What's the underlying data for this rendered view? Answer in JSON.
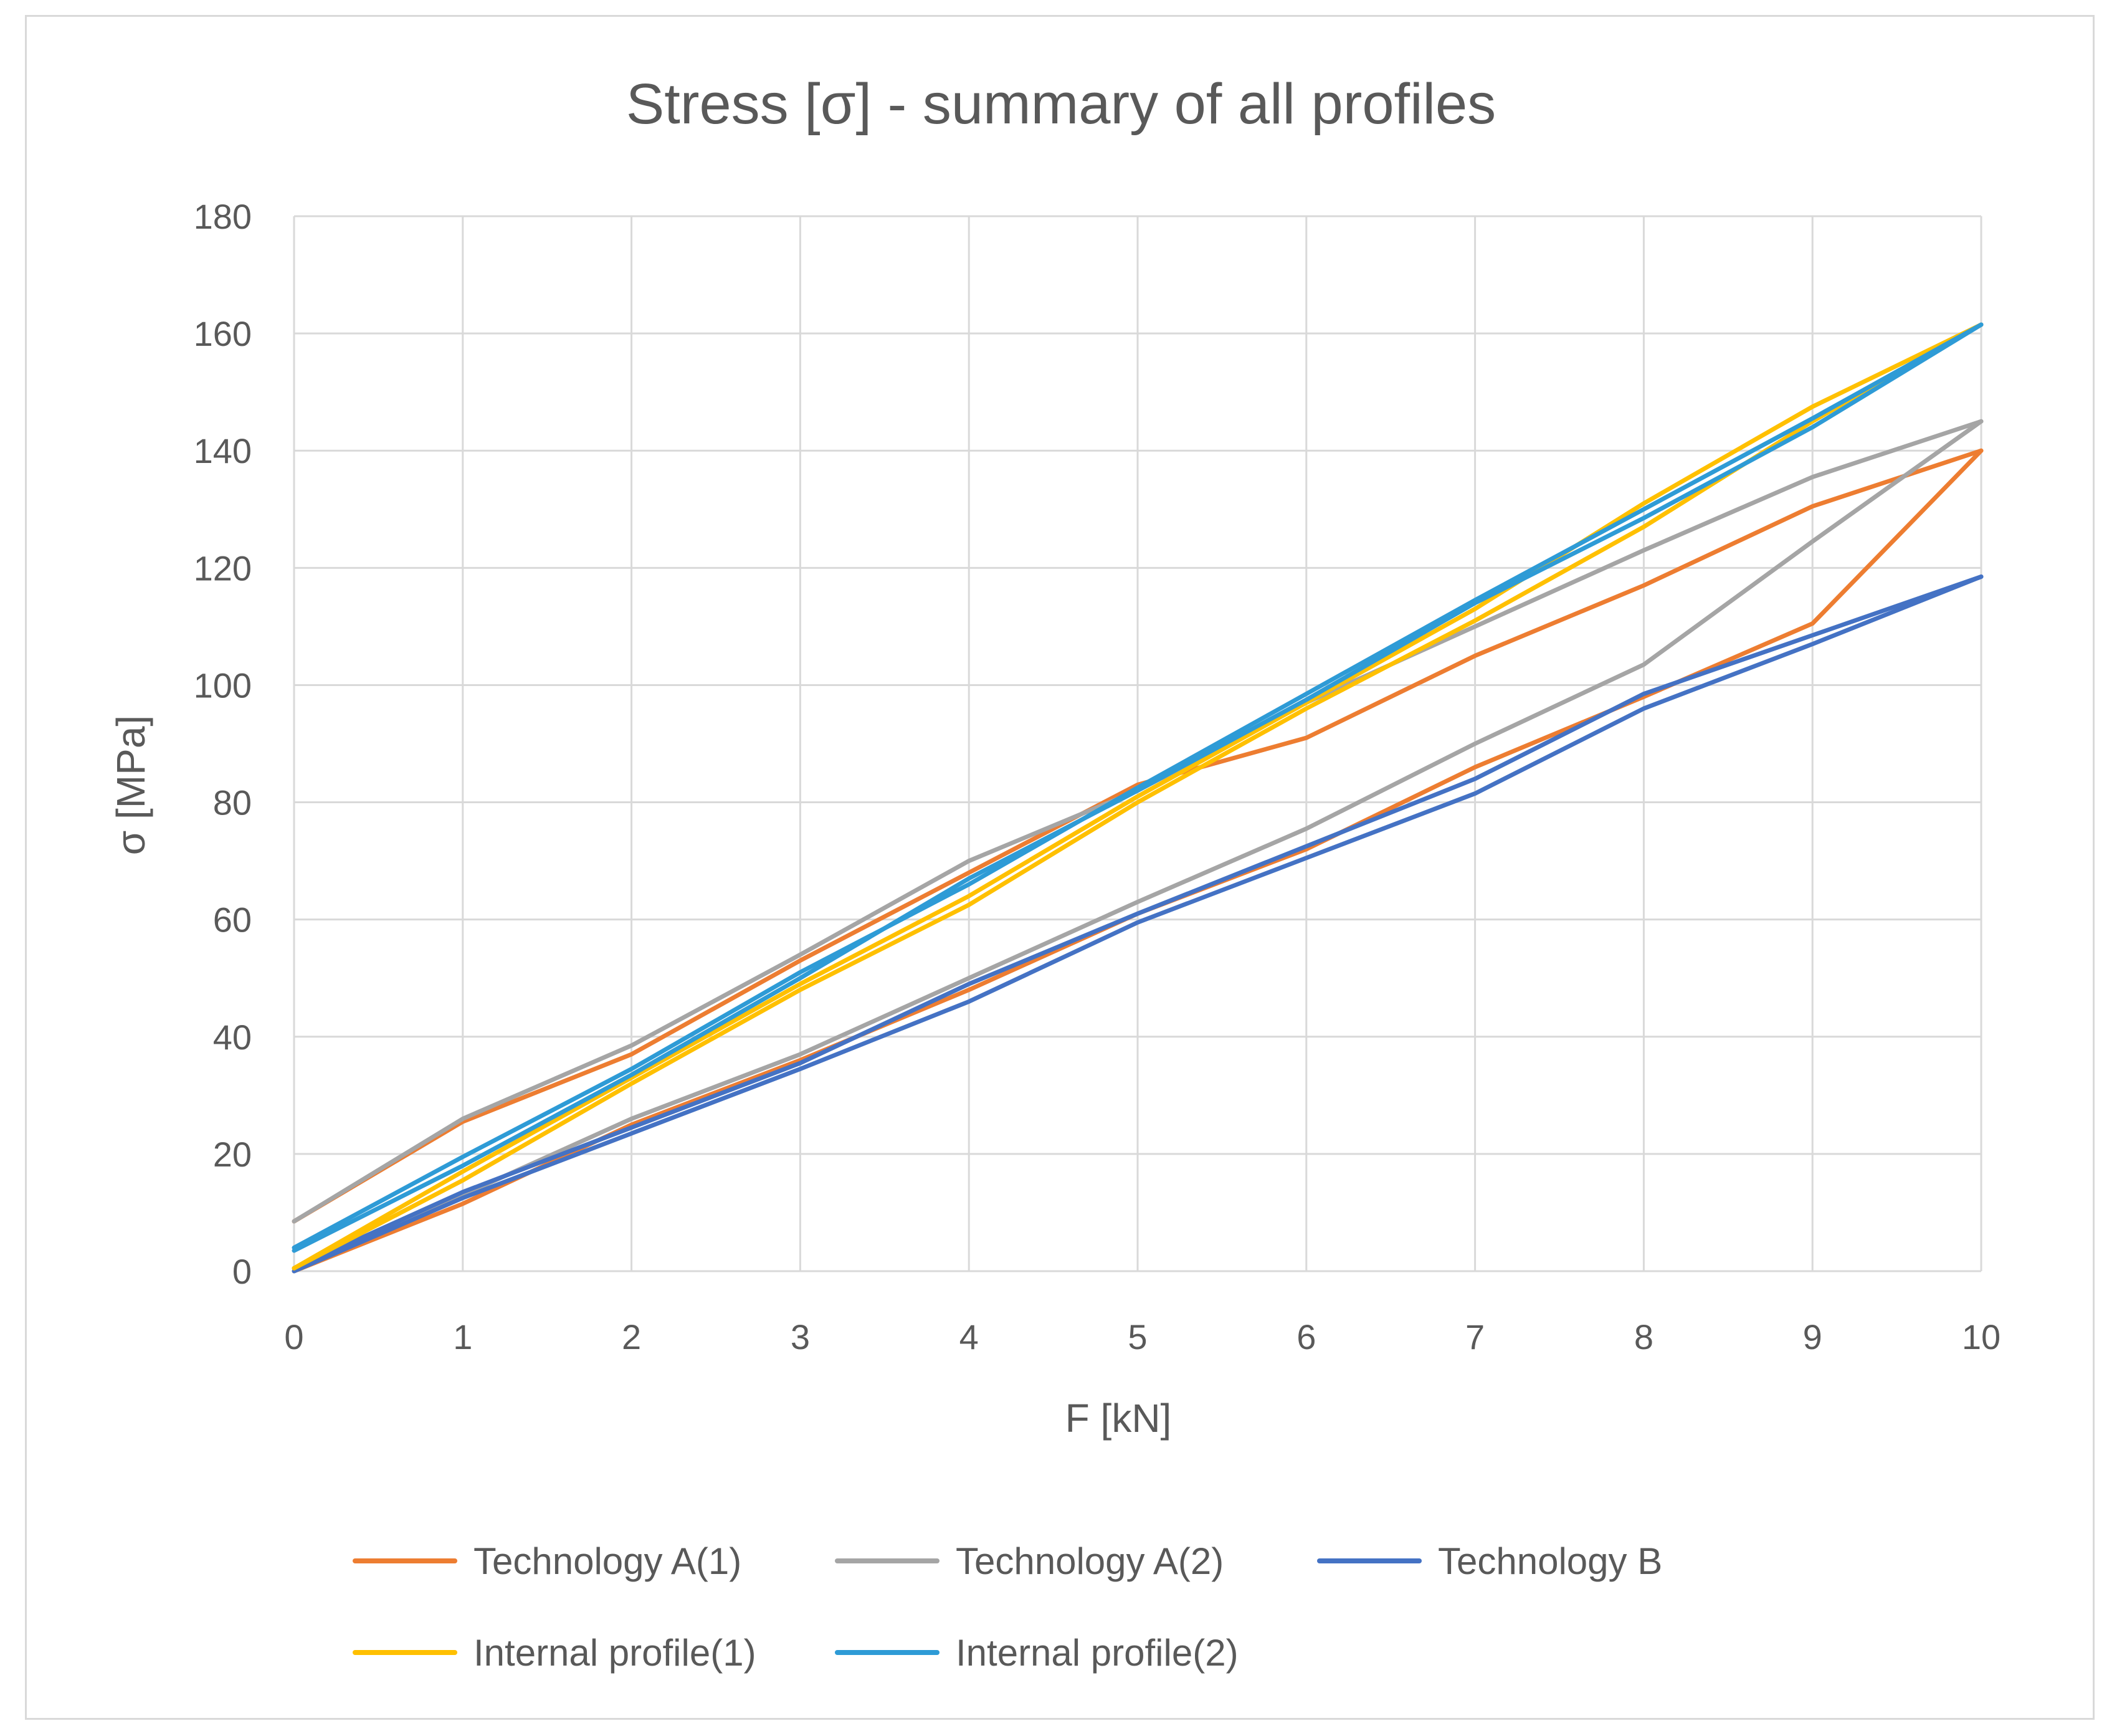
{
  "chart_data": {
    "type": "line",
    "title": "Stress [σ] - summary of all profiles",
    "xlabel": "F [kN]",
    "ylabel": "σ [MPa]",
    "xlim": [
      0,
      10
    ],
    "ylim": [
      0,
      180
    ],
    "x_ticks": [
      "0",
      "1",
      "2",
      "3",
      "4",
      "5",
      "6",
      "7",
      "8",
      "9",
      "10"
    ],
    "y_ticks": [
      "0",
      "20",
      "40",
      "60",
      "80",
      "100",
      "120",
      "140",
      "160",
      "180"
    ],
    "grid": true,
    "legend_position": "bottom",
    "x": [
      0,
      1,
      2,
      3,
      4,
      5,
      6,
      7,
      8,
      9,
      10
    ],
    "series": [
      {
        "name": "Technology A(1)",
        "color": "#ed7d31",
        "values": [
          8.5,
          25.5,
          37,
          53,
          68,
          83,
          91,
          105,
          117,
          130.5,
          140
        ]
      },
      {
        "name": "Technology A(1)",
        "color": "#ed7d31",
        "values": [
          0,
          11.5,
          25,
          36,
          48,
          61,
          72,
          86,
          98,
          110.5,
          140
        ],
        "legend": false
      },
      {
        "name": "Technology A(2)",
        "color": "#a5a5a5",
        "values": [
          8.5,
          26,
          38.5,
          54,
          70,
          82,
          97,
          110,
          123,
          135.5,
          145
        ]
      },
      {
        "name": "Technology A(2)",
        "color": "#a5a5a5",
        "values": [
          0.5,
          13,
          26,
          37,
          50,
          63,
          75.5,
          90,
          103.5,
          124.5,
          145
        ],
        "legend": false
      },
      {
        "name": "Technology B",
        "color": "#4472c4",
        "values": [
          0.5,
          13.5,
          24.5,
          35.5,
          49,
          61,
          72.5,
          84,
          98.5,
          108.5,
          118.5
        ]
      },
      {
        "name": "Technology B",
        "color": "#4472c4",
        "values": [
          0,
          12.5,
          23.5,
          34.5,
          46,
          59.5,
          70.5,
          81.5,
          96,
          107,
          118.5
        ],
        "legend": false
      },
      {
        "name": "Internal profile(1)",
        "color": "#ffc000",
        "values": [
          0.5,
          15.5,
          32,
          48,
          62.5,
          80,
          96,
          111,
          127,
          145,
          161.5
        ]
      },
      {
        "name": "Internal profile(1)",
        "color": "#ffc000",
        "values": [
          0.5,
          17,
          33,
          49,
          64,
          81,
          97,
          113,
          131,
          147.5,
          161.5
        ],
        "legend": false
      },
      {
        "name": "Internal profile(2)",
        "color": "#2e9bd6",
        "values": [
          4,
          19.5,
          34.5,
          51,
          66,
          82.5,
          98.5,
          114.5,
          130,
          145.5,
          161.5
        ]
      },
      {
        "name": "Internal profile(2)",
        "color": "#2e9bd6",
        "values": [
          3.5,
          18,
          33.5,
          50,
          67,
          82,
          97.5,
          114,
          128.5,
          144,
          161.5
        ],
        "legend": false
      }
    ],
    "legend": [
      {
        "label": "Technology A(1)",
        "color": "#ed7d31"
      },
      {
        "label": "Technology A(2)",
        "color": "#a5a5a5"
      },
      {
        "label": "Technology B",
        "color": "#4472c4"
      },
      {
        "label": "Internal profile(1)",
        "color": "#ffc000"
      },
      {
        "label": "Internal profile(2)",
        "color": "#2e9bd6"
      }
    ]
  }
}
